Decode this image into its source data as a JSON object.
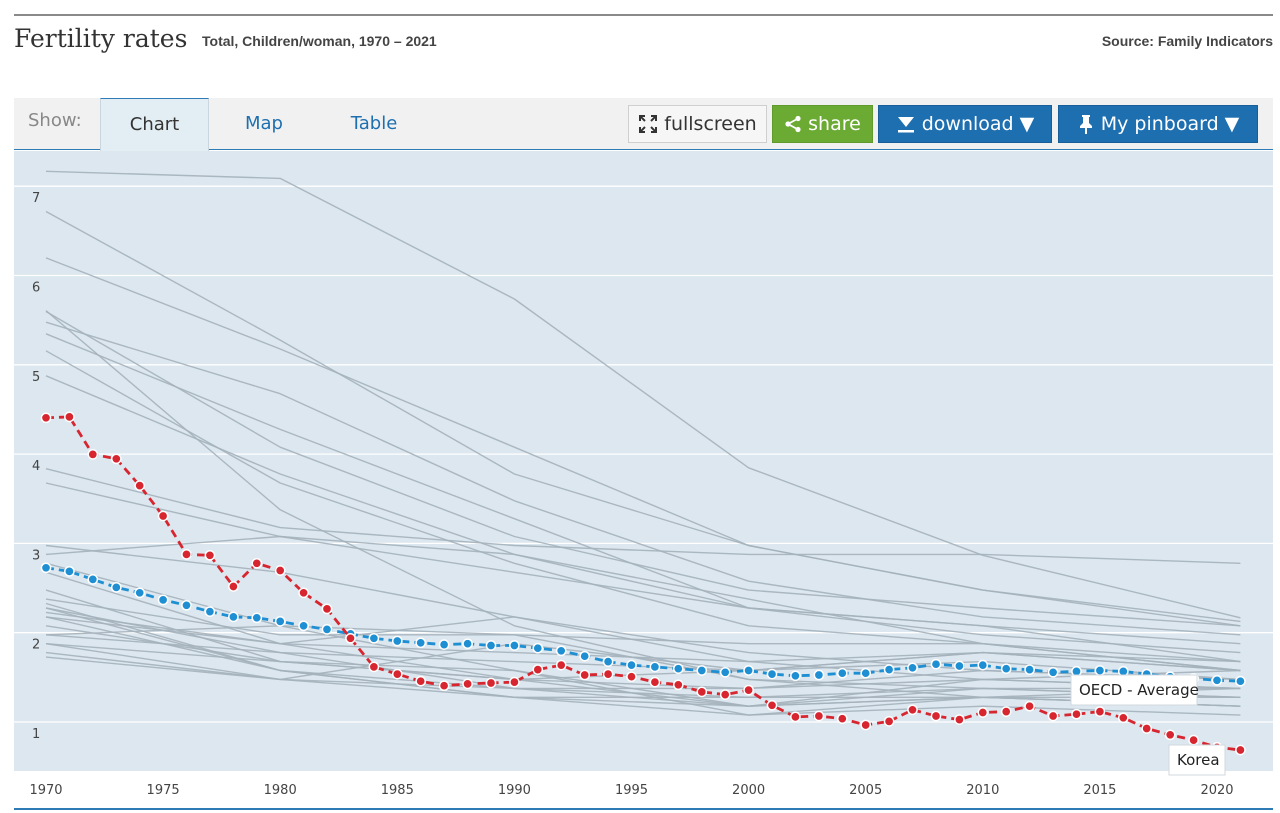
{
  "header": {
    "title": "Fertility rates",
    "subtitle": "Total, Children/woman, 1970 – 2021",
    "source": "Source: Family Indicators"
  },
  "toolbar": {
    "show_label": "Show:",
    "tabs": [
      {
        "label": "Chart",
        "active": true
      },
      {
        "label": "Map",
        "active": false
      },
      {
        "label": "Table",
        "active": false
      }
    ],
    "fullscreen_label": "fullscreen",
    "share_label": "share",
    "download_label": "download ▼",
    "pinboard_label": "My pinboard ▼"
  },
  "colors": {
    "korea": "#d7262f",
    "oecd": "#1f8fd3",
    "background_lines": "#a4b1bb",
    "plot_bg": "#dce7ef",
    "button_blue": "#1e6fb0",
    "button_green": "#6cab33"
  },
  "chart_data": {
    "type": "line",
    "title": "Fertility rates",
    "xlabel": "",
    "ylabel": "",
    "xlim": [
      1970,
      2021
    ],
    "ylim": [
      0.7,
      7.7
    ],
    "xticks": [
      1970,
      1975,
      1980,
      1985,
      1990,
      1995,
      2000,
      2005,
      2010,
      2015,
      2020
    ],
    "yticks": [
      1,
      2,
      3,
      4,
      5,
      6,
      7
    ],
    "grid": true,
    "highlighted_series": [
      {
        "name": "Korea",
        "label": "Korea",
        "style": "dashed-markers",
        "x": [
          1970,
          1971,
          1972,
          1973,
          1974,
          1975,
          1976,
          1977,
          1978,
          1979,
          1980,
          1981,
          1982,
          1983,
          1984,
          1985,
          1986,
          1987,
          1988,
          1989,
          1990,
          1991,
          1992,
          1993,
          1994,
          1995,
          1996,
          1997,
          1998,
          1999,
          2000,
          2001,
          2002,
          2003,
          2004,
          2005,
          2006,
          2007,
          2008,
          2009,
          2010,
          2011,
          2012,
          2013,
          2014,
          2015,
          2016,
          2017,
          2018,
          2019,
          2020,
          2021
        ],
        "values": [
          4.53,
          4.54,
          4.12,
          4.07,
          3.77,
          3.43,
          3.0,
          2.99,
          2.64,
          2.9,
          2.82,
          2.57,
          2.39,
          2.06,
          1.74,
          1.66,
          1.58,
          1.53,
          1.55,
          1.56,
          1.57,
          1.71,
          1.76,
          1.65,
          1.66,
          1.63,
          1.57,
          1.54,
          1.46,
          1.43,
          1.48,
          1.31,
          1.18,
          1.19,
          1.16,
          1.09,
          1.13,
          1.26,
          1.19,
          1.15,
          1.23,
          1.24,
          1.3,
          1.19,
          1.21,
          1.24,
          1.17,
          1.05,
          0.98,
          0.92,
          0.84,
          0.81
        ]
      },
      {
        "name": "OECD - Average",
        "label": "OECD - Average",
        "style": "dashed-markers",
        "x": [
          1970,
          1971,
          1972,
          1973,
          1974,
          1975,
          1976,
          1977,
          1978,
          1979,
          1980,
          1981,
          1982,
          1983,
          1984,
          1985,
          1986,
          1987,
          1988,
          1989,
          1990,
          1991,
          1992,
          1993,
          1994,
          1995,
          1996,
          1997,
          1998,
          1999,
          2000,
          2001,
          2002,
          2003,
          2004,
          2005,
          2006,
          2007,
          2008,
          2009,
          2010,
          2011,
          2012,
          2013,
          2014,
          2015,
          2016,
          2017,
          2018,
          2019,
          2020,
          2021
        ],
        "values": [
          2.85,
          2.81,
          2.72,
          2.63,
          2.57,
          2.49,
          2.43,
          2.36,
          2.3,
          2.29,
          2.25,
          2.2,
          2.16,
          2.11,
          2.06,
          2.03,
          2.01,
          1.99,
          2.0,
          1.98,
          1.98,
          1.95,
          1.92,
          1.86,
          1.8,
          1.76,
          1.74,
          1.72,
          1.7,
          1.68,
          1.7,
          1.66,
          1.64,
          1.65,
          1.67,
          1.67,
          1.71,
          1.73,
          1.77,
          1.75,
          1.76,
          1.72,
          1.71,
          1.68,
          1.69,
          1.7,
          1.69,
          1.66,
          1.63,
          1.61,
          1.59,
          1.58
        ]
      }
    ],
    "background_series": [
      {
        "x": [
          1970,
          1980,
          1990,
          2000,
          2010,
          2021
        ],
        "values": [
          7.29,
          7.21,
          5.86,
          3.97,
          2.99,
          2.29
        ]
      },
      {
        "x": [
          1970,
          1980,
          1990,
          2000,
          2010,
          2021
        ],
        "values": [
          6.84,
          5.4,
          3.9,
          3.1,
          2.6,
          2.25
        ]
      },
      {
        "x": [
          1970,
          1980,
          1990,
          2000,
          2010,
          2021
        ],
        "values": [
          6.32,
          5.3,
          4.2,
          3.1,
          2.6,
          2.2
        ]
      },
      {
        "x": [
          1970,
          1980,
          1990,
          2000,
          2010,
          2021
        ],
        "values": [
          5.72,
          4.2,
          3.2,
          2.6,
          2.4,
          2.2
        ]
      },
      {
        "x": [
          1970,
          1980,
          1990,
          2000,
          2010,
          2021
        ],
        "values": [
          5.6,
          4.8,
          3.6,
          2.7,
          2.3,
          2.1
        ]
      },
      {
        "x": [
          1970,
          1980,
          1990,
          2000,
          2010,
          2021
        ],
        "values": [
          5.47,
          4.4,
          3.4,
          2.4,
          2.1,
          1.9
        ]
      },
      {
        "x": [
          1970,
          1980,
          1990,
          2000,
          2010,
          2021
        ],
        "values": [
          5.28,
          3.8,
          2.9,
          2.2,
          2.0,
          1.7
        ]
      },
      {
        "x": [
          1970,
          1980,
          1990,
          2000,
          2010,
          2021
        ],
        "values": [
          5.73,
          3.5,
          2.2,
          1.6,
          1.5,
          1.4
        ]
      },
      {
        "x": [
          1970,
          1980,
          1990,
          2000,
          2010,
          2021
        ],
        "values": [
          5.0,
          3.9,
          3.0,
          2.5,
          2.0,
          1.7
        ]
      },
      {
        "x": [
          1970,
          1980,
          1990,
          2000,
          2010,
          2021
        ],
        "values": [
          3.96,
          3.3,
          3.1,
          3.0,
          3.0,
          2.9
        ]
      },
      {
        "x": [
          1970,
          1980,
          1990,
          2000,
          2010,
          2021
        ],
        "values": [
          3.8,
          3.2,
          2.8,
          2.4,
          2.2,
          1.8
        ]
      },
      {
        "x": [
          1970,
          1980,
          1990,
          2000,
          2010,
          2021
        ],
        "values": [
          3.1,
          2.8,
          2.3,
          1.8,
          1.6,
          1.5
        ]
      },
      {
        "x": [
          1970,
          1980,
          1990,
          2000,
          2010,
          2021
        ],
        "values": [
          3.0,
          3.2,
          3.0,
          2.4,
          2.2,
          2.0
        ]
      },
      {
        "x": [
          1970,
          1980,
          1990,
          2000,
          2010,
          2021
        ],
        "values": [
          2.9,
          2.2,
          1.7,
          1.3,
          1.4,
          1.3
        ]
      },
      {
        "x": [
          1970,
          1980,
          1990,
          2000,
          2010,
          2021
        ],
        "values": [
          2.8,
          2.0,
          1.9,
          1.8,
          1.9,
          1.7
        ]
      },
      {
        "x": [
          1970,
          1980,
          1990,
          2000,
          2010,
          2021
        ],
        "values": [
          2.6,
          1.8,
          1.6,
          1.5,
          1.7,
          1.6
        ]
      },
      {
        "x": [
          1970,
          1980,
          1990,
          2000,
          2010,
          2021
        ],
        "values": [
          2.5,
          2.1,
          2.1,
          2.0,
          2.0,
          1.8
        ]
      },
      {
        "x": [
          1970,
          1980,
          1990,
          2000,
          2010,
          2021
        ],
        "values": [
          2.45,
          1.7,
          1.4,
          1.2,
          1.4,
          1.4
        ]
      },
      {
        "x": [
          1970,
          1980,
          1990,
          2000,
          2010,
          2021
        ],
        "values": [
          2.4,
          1.9,
          1.8,
          1.7,
          1.8,
          1.6
        ]
      },
      {
        "x": [
          1970,
          1980,
          1990,
          2000,
          2010,
          2021
        ],
        "values": [
          2.3,
          1.7,
          1.4,
          1.4,
          1.4,
          1.3
        ]
      },
      {
        "x": [
          1970,
          1980,
          1990,
          2000,
          2010,
          2021
        ],
        "values": [
          2.3,
          2.0,
          1.6,
          1.3,
          1.6,
          1.5
        ]
      },
      {
        "x": [
          1970,
          1980,
          1990,
          2000,
          2010,
          2021
        ],
        "values": [
          2.2,
          1.8,
          1.6,
          1.7,
          1.9,
          1.7
        ]
      },
      {
        "x": [
          1970,
          1980,
          1990,
          2000,
          2010,
          2021
        ],
        "values": [
          2.1,
          1.9,
          1.5,
          1.3,
          1.5,
          1.5
        ]
      },
      {
        "x": [
          1970,
          1980,
          1990,
          2000,
          2010,
          2021
        ],
        "values": [
          2.0,
          1.6,
          1.5,
          1.5,
          1.6,
          1.7
        ]
      },
      {
        "x": [
          1970,
          1980,
          1990,
          2000,
          2010,
          2021
        ],
        "values": [
          2.0,
          1.8,
          1.7,
          1.2,
          1.3,
          1.2
        ]
      },
      {
        "x": [
          1970,
          1980,
          1990,
          2000,
          2010,
          2021
        ],
        "values": [
          1.9,
          1.6,
          1.4,
          1.3,
          1.4,
          1.5
        ]
      },
      {
        "x": [
          1970,
          1980,
          1990,
          2000,
          2010,
          2021
        ],
        "values": [
          1.85,
          1.6,
          2.0,
          1.7,
          1.9,
          1.8
        ]
      },
      {
        "x": [
          1970,
          1980,
          1990,
          2000,
          2010,
          2021
        ],
        "values": [
          2.4,
          1.7,
          1.5,
          1.4,
          1.5,
          1.4
        ]
      },
      {
        "x": [
          1970,
          1980,
          1990,
          2000,
          2010,
          2021
        ],
        "values": [
          2.1,
          2.2,
          2.1,
          1.6,
          1.4,
          1.3
        ]
      },
      {
        "x": [
          1970,
          1980,
          1990,
          2000,
          2010,
          2021
        ],
        "values": [
          2.35,
          2.0,
          2.3,
          1.9,
          1.7,
          1.6
        ]
      }
    ]
  }
}
